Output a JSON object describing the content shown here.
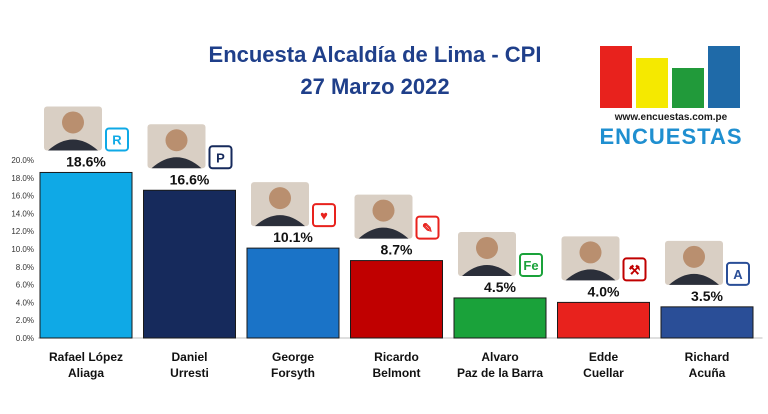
{
  "title": "Encuesta Alcaldía de Lima - CPI",
  "subtitle": "27 Marzo 2022",
  "logo": {
    "url_text": "www.encuestas.com.pe",
    "brand": "ENCUESTAS",
    "bar_colors": [
      "#e8221d",
      "#f5e900",
      "#219a3a",
      "#1f6aa8"
    ]
  },
  "chart_data": {
    "type": "bar",
    "categories": [
      [
        "Rafael López",
        "Aliaga"
      ],
      [
        "Daniel",
        "Urresti"
      ],
      [
        "George",
        "Forsyth"
      ],
      [
        "Ricardo",
        "Belmont"
      ],
      [
        "Alvaro",
        "Paz de la Barra"
      ],
      [
        "Edde",
        "Cuellar"
      ],
      [
        "Richard",
        "Acuña"
      ]
    ],
    "values": [
      18.6,
      16.6,
      10.1,
      8.7,
      4.5,
      4.0,
      3.5
    ],
    "value_labels": [
      "18.6%",
      "16.6%",
      "10.1%",
      "8.7%",
      "4.5%",
      "4.0%",
      "3.5%"
    ],
    "colors": [
      "#0fa9e6",
      "#162a5c",
      "#1a73c7",
      "#c00000",
      "#1aa23a",
      "#e8221d",
      "#2a4e97"
    ],
    "ylim": [
      0,
      20
    ],
    "yticks": [
      "0.0%",
      "2.0%",
      "4.0%",
      "6.0%",
      "8.0%",
      "10.0%",
      "12.0%",
      "14.0%",
      "16.0%",
      "18.0%",
      "20.0%"
    ],
    "grid": false
  },
  "party_badges": [
    {
      "icon": "renovacion-popular-icon",
      "text": "R",
      "color": "#0fa9e6"
    },
    {
      "icon": "podemos-peru-icon",
      "text": "P",
      "color": "#162a5c"
    },
    {
      "icon": "somos-peru-icon",
      "text": "♥",
      "color": "#e8221d"
    },
    {
      "icon": "pencil-party-icon",
      "text": "✎",
      "color": "#e8221d"
    },
    {
      "icon": "fe-party-icon",
      "text": "Fe",
      "color": "#1aa23a"
    },
    {
      "icon": "shovel-party-icon",
      "text": "⚒",
      "color": "#c00000"
    },
    {
      "icon": "app-party-icon",
      "text": "A",
      "color": "#2a4e97"
    }
  ]
}
